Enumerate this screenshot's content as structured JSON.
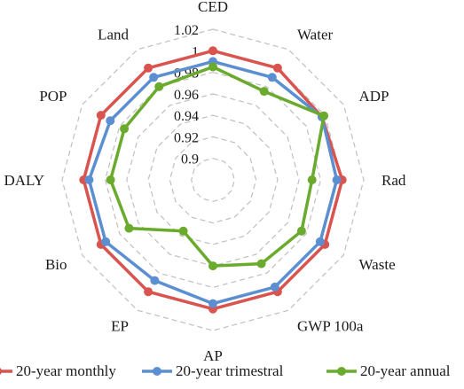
{
  "chart_data": {
    "type": "radar",
    "categories": [
      "CED",
      "Water",
      "ADP",
      "Rad",
      "Waste",
      "GWP 100a",
      "AP",
      "EP",
      "Bio",
      "DALY",
      "POP",
      "Land"
    ],
    "rlim": [
      0.88,
      1.02
    ],
    "ticks": [
      0.9,
      0.92,
      0.94,
      0.96,
      0.98,
      1,
      1.02
    ],
    "tick_labels": [
      "0.9",
      "0.92",
      "0.94",
      "0.96",
      "0.98",
      "1",
      "1.02"
    ],
    "grid": true,
    "legend_position": "bottom",
    "series": [
      {
        "name": "20-year monthly",
        "color": "#d9534f",
        "values": [
          1.0,
          1.0,
          0.997,
          1.0,
          1.0,
          1.0,
          1.0,
          1.0,
          1.0,
          1.0,
          1.0,
          1.0
        ]
      },
      {
        "name": "20-year trimestral",
        "color": "#5b8fd1",
        "values": [
          0.99,
          0.99,
          0.997,
          0.995,
          0.995,
          0.995,
          0.995,
          0.988,
          0.995,
          0.995,
          0.99,
          0.99
        ]
      },
      {
        "name": "20-year annual",
        "color": "#6aaa2d",
        "values": [
          0.985,
          0.975,
          0.999,
          0.972,
          0.975,
          0.97,
          0.96,
          0.935,
          0.97,
          0.975,
          0.975,
          0.98
        ]
      }
    ]
  }
}
